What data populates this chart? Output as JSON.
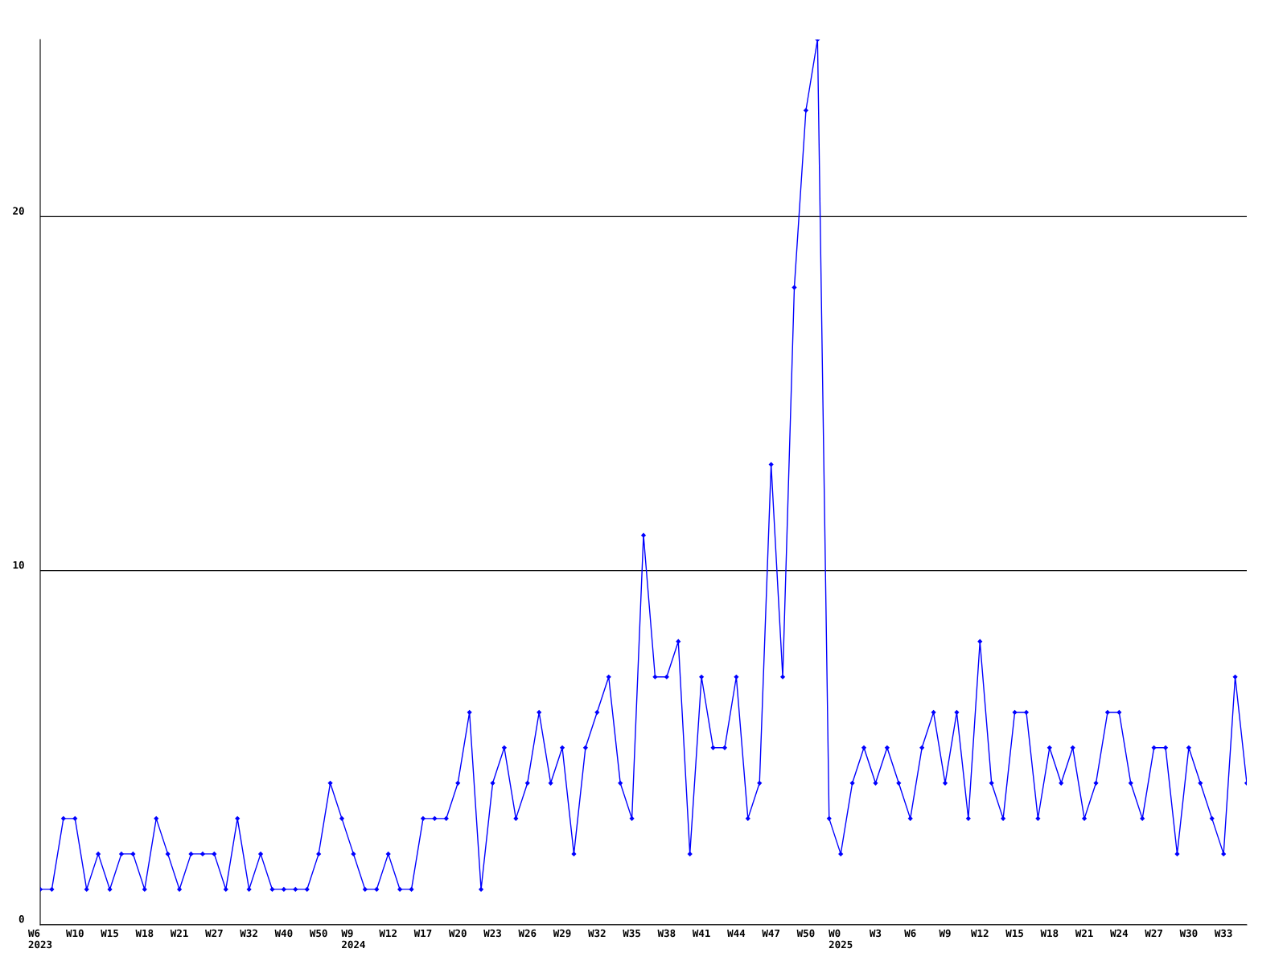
{
  "chart_data": {
    "type": "line",
    "categories": [
      "W6\n2023",
      null,
      null,
      "W10",
      null,
      null,
      "W15",
      null,
      null,
      "W18",
      null,
      null,
      "W21",
      null,
      null,
      "W27",
      null,
      null,
      "W32",
      null,
      null,
      "W40",
      null,
      null,
      "W50",
      null,
      null,
      "W9\n2024",
      null,
      null,
      "W12",
      null,
      null,
      "W17",
      null,
      null,
      "W20",
      null,
      null,
      "W23",
      null,
      null,
      "W26",
      null,
      null,
      "W29",
      null,
      null,
      "W32",
      null,
      null,
      "W35",
      null,
      null,
      "W38",
      null,
      null,
      "W41",
      null,
      null,
      "W44",
      null,
      null,
      "W47",
      null,
      null,
      "W50",
      null,
      null,
      "W0\n2025",
      null,
      null,
      "W3",
      null,
      null,
      "W6",
      null,
      null,
      "W9",
      null,
      null,
      "W12",
      null,
      null,
      "W15",
      null,
      null,
      "W18",
      null,
      null,
      "W21",
      null,
      null,
      "W24",
      null,
      null,
      "W27",
      null,
      null,
      "W30",
      null,
      null,
      "W33",
      null,
      null
    ],
    "series": [
      {
        "color": "#0000ff",
        "values": [
          1,
          1,
          3,
          3,
          1,
          2,
          1,
          2,
          2,
          1,
          3,
          2,
          1,
          2,
          2,
          2,
          1,
          3,
          1,
          2,
          1,
          1,
          1,
          1,
          2,
          4,
          3,
          2,
          1,
          1,
          2,
          1,
          1,
          3,
          3,
          3,
          4,
          6,
          1,
          4,
          5,
          3,
          4,
          6,
          4,
          5,
          2,
          5,
          6,
          7,
          4,
          3,
          11,
          7,
          7,
          8,
          2,
          7,
          5,
          5,
          7,
          3,
          4,
          13,
          7,
          18,
          23,
          25,
          3,
          2,
          4,
          5,
          4,
          5,
          4,
          3,
          5,
          6,
          4,
          6,
          3,
          8,
          4,
          3,
          6,
          6,
          3,
          5,
          4,
          5,
          3,
          4,
          6,
          6,
          4,
          3,
          5,
          5,
          2,
          5,
          4,
          3,
          2,
          7,
          4
        ]
      }
    ],
    "ylim": [
      0,
      25
    ],
    "yticks": [
      0,
      10,
      20
    ],
    "grid": "y",
    "marker": "diamond",
    "line_style": "solid"
  }
}
